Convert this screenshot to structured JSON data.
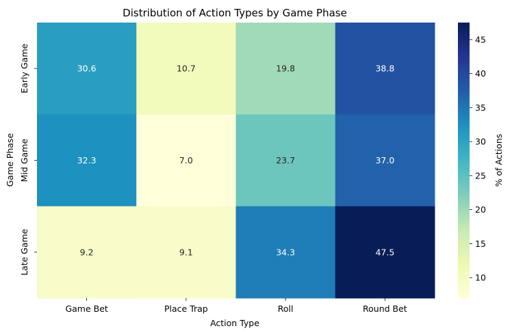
{
  "chart_data": {
    "type": "heatmap",
    "title": "Distribution of Action Types by Game Phase",
    "xlabel": "Action Type",
    "ylabel": "Game Phase",
    "x_categories": [
      "Game Bet",
      "Place Trap",
      "Roll",
      "Round Bet"
    ],
    "y_categories": [
      "Early Game",
      "Mid Game",
      "Late Game"
    ],
    "values": [
      [
        30.6,
        10.7,
        19.8,
        38.8
      ],
      [
        32.3,
        7.0,
        23.7,
        37.0
      ],
      [
        9.2,
        9.1,
        34.3,
        47.5
      ]
    ],
    "value_labels": [
      [
        "30.6",
        "10.7",
        "19.8",
        "38.8"
      ],
      [
        "32.3",
        "7.0",
        "23.7",
        "37.0"
      ],
      [
        "9.2",
        "9.1",
        "34.3",
        "47.5"
      ]
    ],
    "colorbar": {
      "label": "% of Actions",
      "min": 7.0,
      "max": 47.5,
      "ticks": [
        10,
        15,
        20,
        25,
        30,
        35,
        40,
        45
      ],
      "colormap": "YlGnBu"
    },
    "grid": false
  }
}
